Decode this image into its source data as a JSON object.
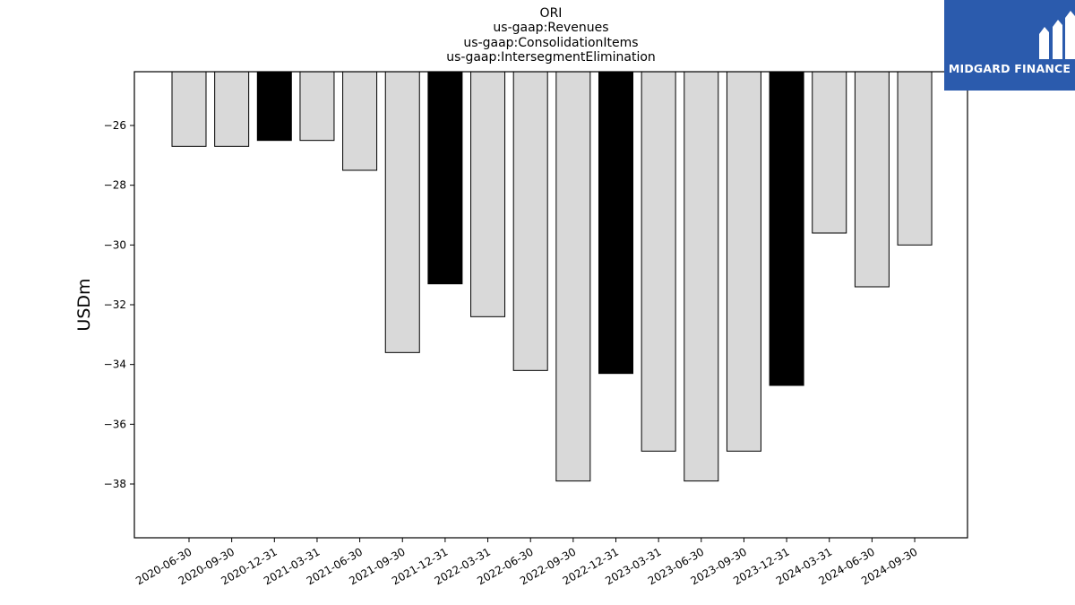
{
  "title_lines": [
    "ORI",
    "us-gaap:Revenues",
    "us-gaap:ConsolidationItems",
    "us-gaap:IntersegmentElimination"
  ],
  "logo": {
    "text": "MIDGARD FINANCE",
    "background": "#2b5bad",
    "icon": "midgard-logo-icon"
  },
  "chart_data": {
    "type": "bar",
    "title": "ORI\nus-gaap:Revenues\nus-gaap:ConsolidationItems\nus-gaap:IntersegmentElimination",
    "xlabel": "",
    "ylabel": "USDm",
    "ylim": [
      -39.8,
      -24.2
    ],
    "yticks": [
      -26,
      -28,
      -30,
      -32,
      -34,
      -36,
      -38
    ],
    "ytick_labels": [
      "−26",
      "−28",
      "−30",
      "−32",
      "−34",
      "−36",
      "−38"
    ],
    "grid": false,
    "categories": [
      "2020-06-30",
      "2020-09-30",
      "2020-12-31",
      "2021-03-31",
      "2021-06-30",
      "2021-09-30",
      "2021-12-31",
      "2022-03-31",
      "2022-06-30",
      "2022-09-30",
      "2022-12-31",
      "2023-03-31",
      "2023-06-30",
      "2023-09-30",
      "2023-12-31",
      "2024-03-31",
      "2024-06-30",
      "2024-09-30"
    ],
    "values": [
      -26.7,
      -26.7,
      -26.5,
      -26.5,
      -27.5,
      -33.6,
      -31.3,
      -32.4,
      -34.2,
      -37.9,
      -34.3,
      -36.9,
      -37.9,
      -36.9,
      -34.7,
      -29.6,
      -31.4,
      -30.0
    ],
    "bar_colors": [
      "#d9d9d9",
      "#d9d9d9",
      "#000000",
      "#d9d9d9",
      "#d9d9d9",
      "#d9d9d9",
      "#000000",
      "#d9d9d9",
      "#d9d9d9",
      "#d9d9d9",
      "#000000",
      "#d9d9d9",
      "#d9d9d9",
      "#d9d9d9",
      "#000000",
      "#d9d9d9",
      "#d9d9d9",
      "#d9d9d9"
    ]
  }
}
